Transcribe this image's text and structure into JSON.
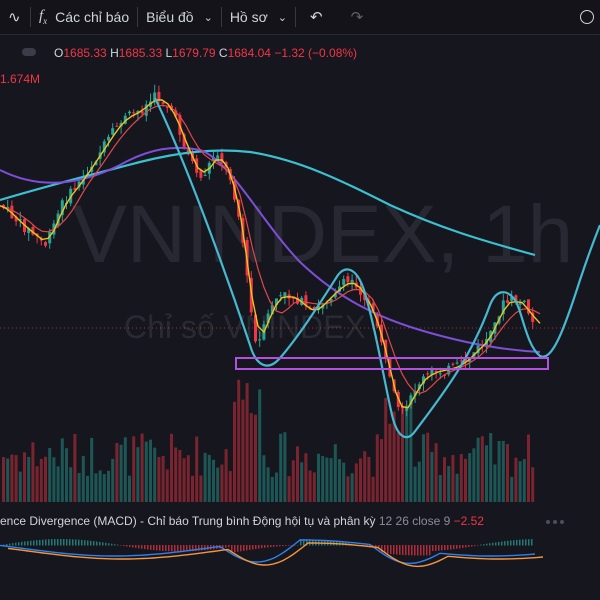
{
  "toolbar": {
    "indicators_icon": "fx-icon",
    "indicators_label": "Các chỉ báo",
    "chart_type_label": "Biểu đồ",
    "profile_label": "Hồ sơ",
    "undo_icon": "undo-icon",
    "redo_icon": "redo-icon",
    "snapshot_icon": "camera-icon"
  },
  "ohlc": {
    "o_label": "O",
    "o_value": "1685.33",
    "h_label": "H",
    "h_value": "1685.33",
    "l_label": "L",
    "l_value": "1679.79",
    "c_label": "C",
    "c_value": "1684.04",
    "change": "−1.32 (−0.08%)"
  },
  "volume_label": "1.674M",
  "watermark": {
    "symbol": "VNINDEX, 1h",
    "name": "Chỉ số VNINDEX"
  },
  "macd": {
    "title": "ence Divergence (MACD) - Chỉ báo Trung bình Động hội tụ và phân kỳ",
    "params": "12 26 close 9",
    "value": "−2.52"
  },
  "colors": {
    "background": "#16161e",
    "up": "#26a69a",
    "down": "#f23645",
    "ma_fast": "#f0c419",
    "ma_mid": "#e04848",
    "ma_slow": "#7c4fd6",
    "ma_long": "#3bc0d0",
    "drawing": "#46b8d0",
    "zone": "#b44fe0",
    "macd_line": "#2f80ed",
    "signal_line": "#f5963c"
  },
  "chart_data": {
    "type": "line",
    "symbol": "VNINDEX",
    "interval": "1h",
    "last_price": 1684.04,
    "candles_close_approx": [
      1665,
      1660,
      1655,
      1650,
      1648,
      1652,
      1660,
      1670,
      1680,
      1690,
      1700,
      1712,
      1720,
      1715,
      1705,
      1690,
      1670,
      1650,
      1630,
      1610,
      1600,
      1608,
      1620,
      1630,
      1625,
      1612,
      1600,
      1585,
      1570,
      1560,
      1565,
      1580,
      1595,
      1610,
      1625,
      1640,
      1655,
      1670,
      1682,
      1684
    ],
    "moving_averages": [
      "fast",
      "medium",
      "slow",
      "long"
    ]
  }
}
